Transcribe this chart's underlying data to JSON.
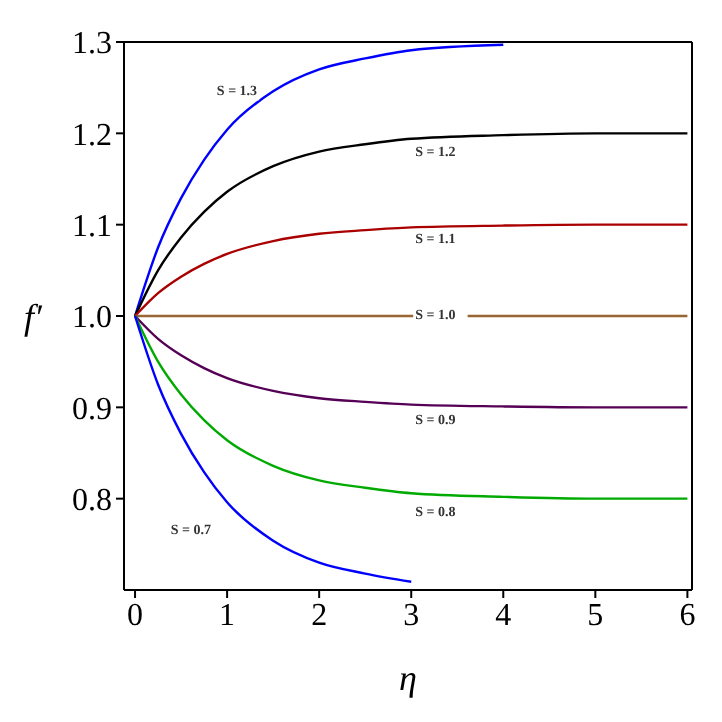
{
  "chart_data": {
    "type": "line",
    "xlabel": "η",
    "ylabel": "f′",
    "x": [
      0,
      0.25,
      0.5,
      0.75,
      1,
      1.5,
      2,
      2.5,
      3,
      4,
      5,
      6
    ],
    "series": [
      {
        "name": "S = 1.3",
        "color": "#0000ff",
        "values": [
          1,
          1.075,
          1.129,
          1.171,
          1.204,
          1.246,
          1.27,
          1.282,
          1.291,
          1.297,
          null,
          null
        ]
      },
      {
        "name": "S = 1.2",
        "color": "#000000",
        "values": [
          1,
          1.05,
          1.086,
          1.114,
          1.136,
          1.164,
          1.18,
          1.188,
          1.194,
          1.198,
          1.2,
          1.2
        ]
      },
      {
        "name": "S = 1.1",
        "color": "#aa0000",
        "values": [
          1,
          1.025,
          1.043,
          1.057,
          1.068,
          1.082,
          1.09,
          1.094,
          1.097,
          1.099,
          1.1,
          1.1
        ]
      },
      {
        "name": "S = 1.0",
        "color": "#996633",
        "values": [
          1,
          1,
          1,
          1,
          1,
          1,
          1,
          1,
          1,
          1,
          1,
          1
        ]
      },
      {
        "name": "S = 0.9",
        "color": "#550055",
        "values": [
          1,
          0.975,
          0.957,
          0.943,
          0.932,
          0.918,
          0.91,
          0.906,
          0.903,
          0.901,
          0.9,
          0.9
        ]
      },
      {
        "name": "S = 0.8",
        "color": "#00aa00",
        "values": [
          1,
          0.95,
          0.914,
          0.886,
          0.864,
          0.836,
          0.82,
          0.812,
          0.806,
          0.802,
          0.8,
          0.8
        ]
      },
      {
        "name": "S = 0.7",
        "color": "#0000ff",
        "values": [
          1,
          0.925,
          0.871,
          0.829,
          0.796,
          0.754,
          0.73,
          0.718,
          0.709,
          null,
          null,
          null
        ]
      }
    ],
    "xlim": [
      -0.12,
      6.05
    ],
    "ylim": [
      0.7,
      1.3
    ],
    "xticks": [
      0,
      1,
      2,
      3,
      4,
      5,
      6
    ],
    "yticks": [
      0.8,
      0.9,
      {
        "value": 1,
        "label": "1.0"
      },
      1.1,
      1.2,
      1.3
    ],
    "marker": "none",
    "line_style": "solid"
  }
}
